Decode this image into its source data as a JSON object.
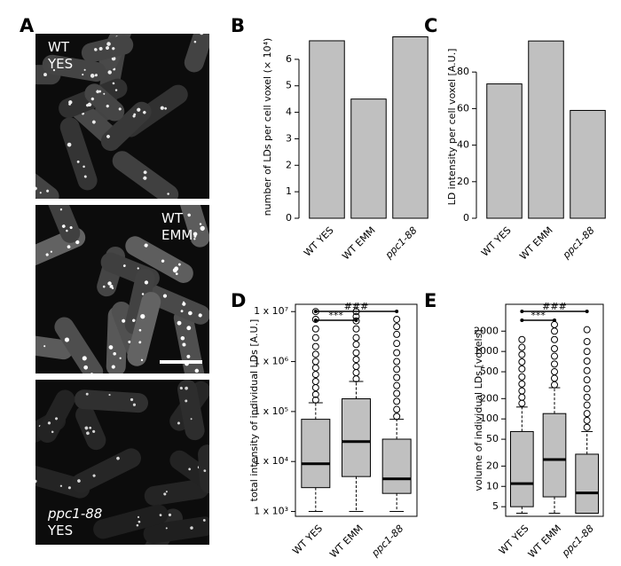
{
  "panel_a": {
    "label": "A",
    "images": [
      {
        "lines": [
          "WT",
          "YES"
        ],
        "styles": [
          "normal",
          "normal"
        ]
      },
      {
        "lines": [
          "WT",
          "EMM"
        ],
        "styles": [
          "normal",
          "normal"
        ]
      },
      {
        "lines": [
          "ppc1-88",
          "YES"
        ],
        "styles": [
          "italic",
          "normal"
        ]
      }
    ]
  },
  "chart_data": [
    {
      "type": "bar",
      "label": "B",
      "y_label": "number of LDs per cell voxel (× 10⁴)",
      "categories": [
        "WT YES",
        "WT EMM",
        "ppc1-88"
      ],
      "category_styles": [
        "normal",
        "normal",
        "italic"
      ],
      "values": [
        6.7,
        4.5,
        6.85
      ],
      "color": "#c0c0c0",
      "ylim": [
        0,
        6.9
      ],
      "yticks": [
        0,
        1,
        2,
        3,
        4,
        5,
        6
      ]
    },
    {
      "type": "bar",
      "label": "C",
      "y_label": "LD intensity per cell voxel [A.U.]",
      "categories": [
        "WT YES",
        "WT EMM",
        "ppc1-88"
      ],
      "category_styles": [
        "normal",
        "normal",
        "italic"
      ],
      "values": [
        73.5,
        97,
        59
      ],
      "color": "#c0c0c0",
      "ylim": [
        0,
        100
      ],
      "yticks": [
        0,
        20,
        40,
        60,
        80
      ]
    },
    {
      "type": "box",
      "label": "D",
      "y_label": "total intensity of individual LDs [A.U.]",
      "log_scale": true,
      "categories": [
        "WT YES",
        "WT EMM",
        "ppc1-88"
      ],
      "category_styles": [
        "normal",
        "normal",
        "italic"
      ],
      "color": "#c0c0c0",
      "ylim": [
        800,
        14000000
      ],
      "yticks": [
        {
          "value": 1000,
          "label": "1 x 10³"
        },
        {
          "value": 10000,
          "label": "1 x 10⁴"
        },
        {
          "value": 100000,
          "label": "1 x 10⁵"
        },
        {
          "value": 1000000,
          "label": "1 x 10⁶"
        },
        {
          "value": 10000000,
          "label": "1 x 10⁷"
        }
      ],
      "boxes": [
        {
          "lower": 1000,
          "q1": 3000,
          "median": 9000,
          "q3": 70000,
          "upper": 150000,
          "outliers": [
            170000,
            220000,
            300000,
            400000,
            550000,
            750000,
            1000000,
            1400000,
            2000000,
            3000000,
            4500000,
            7000000,
            10000000
          ]
        },
        {
          "lower": 1000,
          "q1": 5000,
          "median": 25000,
          "q3": 180000,
          "upper": 400000,
          "outliers": [
            450000,
            600000,
            800000,
            1100000,
            1500000,
            2200000,
            3000000,
            4500000,
            6500000,
            8000000,
            10000000
          ]
        },
        {
          "lower": 1000,
          "q1": 2300,
          "median": 4500,
          "q3": 28000,
          "upper": 70000,
          "outliers": [
            80000,
            110000,
            160000,
            230000,
            330000,
            480000,
            700000,
            1000000,
            1500000,
            2300000,
            3500000,
            5000000,
            7000000
          ]
        }
      ],
      "annotations": [
        {
          "text": "***",
          "from": 0,
          "to": 1
        },
        {
          "text": "###",
          "from": 0,
          "to": 2
        }
      ]
    },
    {
      "type": "box",
      "label": "E",
      "y_label": "volume of individual LDs [voxels]",
      "log_scale": true,
      "categories": [
        "WT YES",
        "WT EMM",
        "ppc1-88"
      ],
      "category_styles": [
        "normal",
        "normal",
        "italic"
      ],
      "color": "#c0c0c0",
      "ylim": [
        3.6,
        5000
      ],
      "yticks": [
        5,
        10,
        20,
        50,
        100,
        200,
        500,
        1000,
        2000
      ],
      "boxes": [
        {
          "lower": 4,
          "q1": 5,
          "median": 11,
          "q3": 65,
          "upper": 150,
          "outliers": [
            170,
            210,
            260,
            330,
            420,
            550,
            700,
            900,
            1150,
            1500
          ]
        },
        {
          "lower": 4,
          "q1": 7,
          "median": 25,
          "q3": 120,
          "upper": 290,
          "outliers": [
            320,
            400,
            500,
            650,
            850,
            1100,
            1500,
            2000,
            2500
          ]
        },
        {
          "lower": 4,
          "q1": 4,
          "median": 8,
          "q3": 30,
          "upper": 65,
          "outliers": [
            75,
            95,
            120,
            160,
            210,
            280,
            380,
            520,
            720,
            1000,
            1400,
            2100
          ]
        }
      ],
      "annotations": [
        {
          "text": "***",
          "from": 0,
          "to": 1
        },
        {
          "text": "###",
          "from": 0,
          "to": 2
        }
      ]
    }
  ]
}
